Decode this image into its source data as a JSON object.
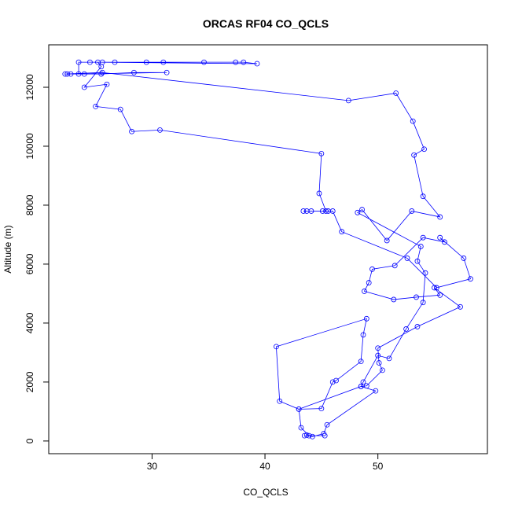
{
  "chart_data": {
    "type": "line",
    "title": "ORCAS RF04 CO_QCLS",
    "x_label": "CO_QCLS",
    "y_label": "Altitude (m)",
    "color": "#0000ff",
    "xlim": [
      20.85,
      59.7
    ],
    "ylim": [
      -430,
      13440
    ],
    "xticks": [
      30,
      40,
      50
    ],
    "yticks": [
      0,
      2000,
      4000,
      6000,
      8000,
      10000,
      12000
    ],
    "x": [
      45.3,
      43.5,
      43.9,
      43.2,
      43,
      45,
      46,
      46.3,
      48.5,
      48.7,
      49,
      41,
      41.3,
      43,
      48.5,
      48.7,
      50,
      51,
      52.5,
      54,
      54.2,
      53.5,
      53.8,
      48.2,
      48.6,
      50.8,
      53,
      55.5,
      54,
      53.2,
      54.1,
      53.1,
      51.6,
      47.4,
      25.6,
      22.3,
      22.5,
      22.8,
      24,
      25.5,
      28.4,
      31.3,
      23.5,
      23.5,
      24.5,
      25.6,
      26.7,
      29.5,
      31,
      34.6,
      37.4,
      38.1,
      39.3,
      25.2,
      25.5,
      24,
      26,
      25,
      27.2,
      28.2,
      30.7,
      45,
      44.8,
      45.4,
      43.4,
      43.7,
      44.1,
      45.1,
      45.6,
      46,
      46.8,
      52.6,
      55.2,
      58.2,
      57.6,
      55.5,
      55.9,
      54,
      51.5,
      49.5,
      49.2,
      48.8,
      51.4,
      53.4,
      55.5,
      55,
      57.3,
      53.5,
      50,
      50.1,
      50.4,
      49,
      48.5,
      49.8,
      45.5,
      45.2,
      44.2,
      43.7
    ],
    "y": [
      180,
      180,
      180,
      450,
      1080,
      1100,
      2000,
      2050,
      2700,
      3600,
      4150,
      3200,
      1350,
      1080,
      1850,
      2000,
      2900,
      2800,
      3800,
      4700,
      5700,
      6100,
      6600,
      7750,
      7850,
      6800,
      7800,
      7600,
      8300,
      9700,
      9900,
      10850,
      11800,
      11550,
      12500,
      12450,
      12450,
      12450,
      12450,
      12450,
      12500,
      12500,
      12450,
      12850,
      12850,
      12850,
      12850,
      12850,
      12850,
      12850,
      12850,
      12850,
      12800,
      12850,
      12700,
      12000,
      12100,
      11350,
      11250,
      10500,
      10550,
      9750,
      8400,
      7800,
      7800,
      7800,
      7800,
      7800,
      7800,
      7800,
      7100,
      6200,
      5200,
      5500,
      6200,
      6900,
      6750,
      6900,
      5950,
      5830,
      5370,
      5080,
      4800,
      4880,
      4950,
      5200,
      4550,
      3880,
      3150,
      2650,
      2400,
      1870,
      1850,
      1700,
      550,
      250,
      150,
      200
    ]
  }
}
